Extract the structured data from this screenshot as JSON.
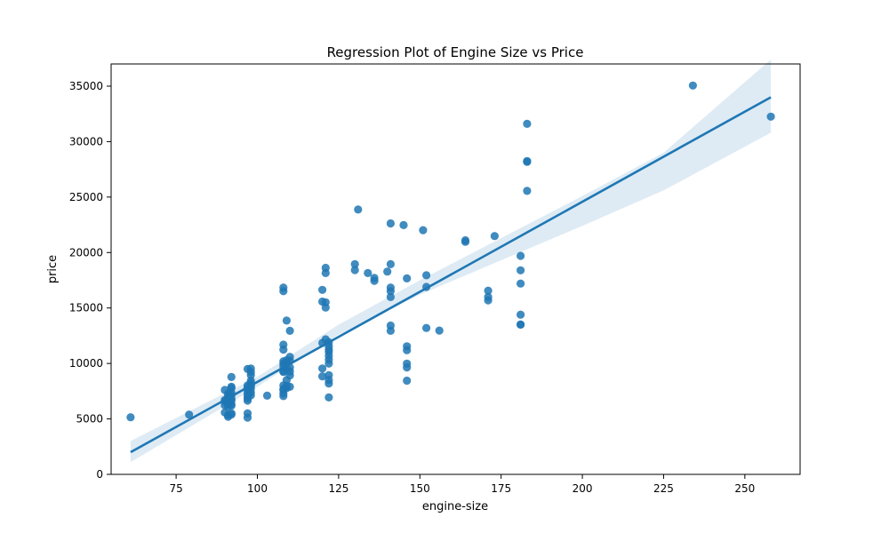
{
  "chart_data": {
    "type": "scatter",
    "title": "Regression Plot of Engine Size vs Price",
    "xlabel": "engine-size",
    "ylabel": "price",
    "xlim": [
      55,
      267
    ],
    "ylim": [
      0,
      37000
    ],
    "xticks": [
      75,
      100,
      125,
      150,
      175,
      200,
      225,
      250
    ],
    "yticks": [
      0,
      5000,
      10000,
      15000,
      20000,
      25000,
      30000,
      35000
    ],
    "grid": false,
    "colors": {
      "points": "#1f77b4",
      "line": "#1f77b4",
      "band": "#1f77b4"
    },
    "regression": {
      "x": [
        61,
        258
      ],
      "y": [
        2000,
        34000
      ]
    },
    "confidence_band": {
      "x": [
        61,
        100,
        125,
        150,
        175,
        200,
        225,
        258
      ],
      "lower": [
        1100,
        7900,
        12600,
        16200,
        19300,
        22400,
        25600,
        30800
      ],
      "upper": [
        3000,
        8800,
        13500,
        17500,
        21300,
        25100,
        29000,
        37400
      ]
    },
    "points": [
      [
        61,
        5151
      ],
      [
        79,
        5389
      ],
      [
        90,
        5572
      ],
      [
        90,
        6229
      ],
      [
        90,
        6575
      ],
      [
        90,
        6692
      ],
      [
        90,
        7609
      ],
      [
        91,
        5195
      ],
      [
        91,
        5348
      ],
      [
        91,
        6095
      ],
      [
        91,
        6295
      ],
      [
        91,
        6488
      ],
      [
        91,
        6855
      ],
      [
        91,
        7099
      ],
      [
        91,
        7295
      ],
      [
        92,
        5399
      ],
      [
        92,
        5499
      ],
      [
        92,
        6189
      ],
      [
        92,
        6338
      ],
      [
        92,
        6669
      ],
      [
        92,
        6795
      ],
      [
        92,
        7129
      ],
      [
        92,
        7349
      ],
      [
        92,
        7775
      ],
      [
        92,
        7898
      ],
      [
        92,
        8778
      ],
      [
        97,
        5118
      ],
      [
        97,
        5499
      ],
      [
        97,
        6649
      ],
      [
        97,
        6849
      ],
      [
        97,
        7053
      ],
      [
        97,
        7299
      ],
      [
        97,
        7603
      ],
      [
        97,
        7799
      ],
      [
        97,
        8013
      ],
      [
        97,
        9495
      ],
      [
        98,
        7126
      ],
      [
        98,
        7395
      ],
      [
        98,
        7738
      ],
      [
        98,
        7957
      ],
      [
        98,
        8058
      ],
      [
        98,
        8238
      ],
      [
        98,
        8449
      ],
      [
        98,
        8948
      ],
      [
        98,
        9233
      ],
      [
        98,
        9538
      ],
      [
        103,
        7099
      ],
      [
        108,
        7053
      ],
      [
        108,
        7295
      ],
      [
        108,
        7603
      ],
      [
        108,
        7689
      ],
      [
        108,
        8013
      ],
      [
        108,
        9233
      ],
      [
        108,
        9295
      ],
      [
        108,
        9720
      ],
      [
        108,
        9980
      ],
      [
        108,
        10198
      ],
      [
        108,
        11245
      ],
      [
        108,
        11694
      ],
      [
        108,
        16515
      ],
      [
        108,
        16845
      ],
      [
        109,
        7775
      ],
      [
        109,
        7975
      ],
      [
        109,
        8495
      ],
      [
        109,
        9495
      ],
      [
        109,
        9995
      ],
      [
        109,
        10295
      ],
      [
        109,
        13860
      ],
      [
        110,
        7898
      ],
      [
        110,
        8921
      ],
      [
        110,
        9279
      ],
      [
        110,
        9639
      ],
      [
        110,
        10245
      ],
      [
        110,
        10595
      ],
      [
        110,
        12940
      ],
      [
        120,
        8845
      ],
      [
        120,
        9549
      ],
      [
        120,
        11850
      ],
      [
        120,
        15580
      ],
      [
        120,
        16630
      ],
      [
        121,
        12170
      ],
      [
        121,
        15040
      ],
      [
        121,
        15510
      ],
      [
        121,
        18150
      ],
      [
        121,
        18620
      ],
      [
        122,
        6938
      ],
      [
        122,
        8189
      ],
      [
        122,
        8499
      ],
      [
        122,
        8949
      ],
      [
        122,
        9989
      ],
      [
        122,
        10345
      ],
      [
        122,
        10698
      ],
      [
        122,
        11048
      ],
      [
        122,
        11259
      ],
      [
        122,
        11549
      ],
      [
        122,
        11900
      ],
      [
        130,
        18420
      ],
      [
        130,
        18950
      ],
      [
        131,
        23875
      ],
      [
        134,
        18150
      ],
      [
        136,
        17450
      ],
      [
        136,
        17710
      ],
      [
        140,
        18280
      ],
      [
        141,
        12940
      ],
      [
        141,
        13415
      ],
      [
        141,
        15985
      ],
      [
        141,
        16515
      ],
      [
        141,
        16845
      ],
      [
        141,
        18950
      ],
      [
        141,
        22625
      ],
      [
        145,
        22470
      ],
      [
        146,
        8449
      ],
      [
        146,
        9639
      ],
      [
        146,
        9989
      ],
      [
        146,
        11199
      ],
      [
        146,
        11549
      ],
      [
        146,
        17669
      ],
      [
        151,
        22018
      ],
      [
        152,
        13200
      ],
      [
        152,
        16900
      ],
      [
        152,
        17950
      ],
      [
        156,
        12964
      ],
      [
        164,
        20970
      ],
      [
        164,
        21105
      ],
      [
        171,
        15690
      ],
      [
        171,
        15998
      ],
      [
        171,
        16558
      ],
      [
        173,
        21485
      ],
      [
        181,
        13499
      ],
      [
        181,
        13499
      ],
      [
        181,
        14399
      ],
      [
        181,
        17199
      ],
      [
        181,
        18399
      ],
      [
        181,
        19699
      ],
      [
        183,
        25552
      ],
      [
        183,
        28176
      ],
      [
        183,
        28248
      ],
      [
        183,
        31600
      ],
      [
        234,
        35056
      ],
      [
        258,
        32250
      ]
    ]
  }
}
